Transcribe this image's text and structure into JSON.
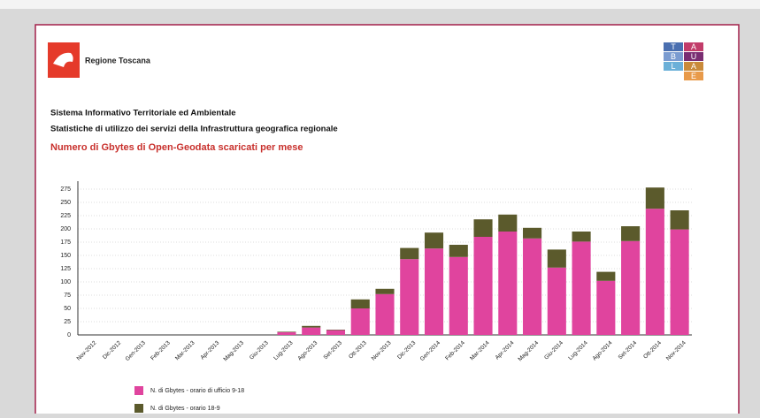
{
  "header": {
    "org": "Regione Toscana",
    "logo_cells": [
      "T",
      "A",
      "B",
      "U",
      "L",
      "A",
      "E"
    ],
    "line1": "Sistema Informativo Territoriale ed Ambientale",
    "line2": "Statistiche di utilizzo dei servizi della Infrastruttura geografica regionale"
  },
  "chart_data": {
    "type": "stacked_bar",
    "title": "Numero di Gbytes di Open-Geodata scaricati per mese",
    "categories": [
      "Nov-2012",
      "Dic-2012",
      "Gen-2013",
      "Feb-2013",
      "Mar-2013",
      "Apr-2013",
      "Mag-2013",
      "Giu-2013",
      "Lug-2013",
      "Ago-2013",
      "Set-2013",
      "Ott-2013",
      "Nov-2013",
      "Dic-2013",
      "Gen-2014",
      "Feb-2014",
      "Mar-2014",
      "Apr-2014",
      "Mag-2014",
      "Giu-2014",
      "Lug-2014",
      "Ago-2014",
      "Set-2014",
      "Ott-2014",
      "Nov-2014"
    ],
    "series": [
      {
        "name": "N. di Gbytes - orario di ufficio 9-18",
        "color": "#e0449e",
        "values": [
          0,
          0,
          0,
          0,
          0,
          0,
          0,
          0,
          5,
          14,
          9,
          50,
          77,
          143,
          163,
          147,
          185,
          195,
          182,
          127,
          176,
          102,
          177,
          238,
          199
        ]
      },
      {
        "name": "N. di Gbytes - orario 18-9",
        "color": "#5b5a2c",
        "values": [
          0,
          0,
          0,
          0,
          0,
          0,
          0,
          0,
          1,
          3,
          1,
          17,
          10,
          21,
          30,
          23,
          33,
          32,
          20,
          34,
          19,
          17,
          28,
          40,
          36
        ]
      }
    ],
    "ylim": [
      0,
      290
    ],
    "yticks": [
      0,
      25,
      50,
      75,
      100,
      125,
      150,
      175,
      200,
      225,
      250,
      275
    ],
    "grid": true
  }
}
